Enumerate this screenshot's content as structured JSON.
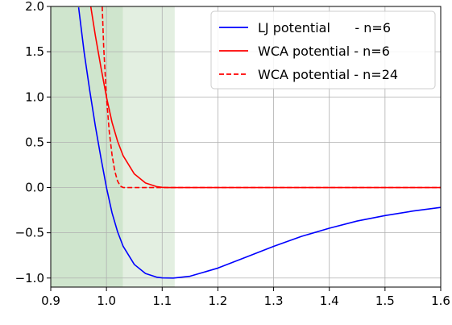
{
  "chart_data": {
    "type": "line",
    "title": "",
    "xlabel": "",
    "ylabel": "",
    "xlim": [
      0.9,
      1.6
    ],
    "ylim": [
      -1.1,
      2.0
    ],
    "grid": true,
    "legend_placement": "top-right",
    "x_ticks": [
      0.9,
      1.0,
      1.1,
      1.2,
      1.3,
      1.4,
      1.5,
      1.6
    ],
    "x_tick_labels": [
      "0.9",
      "1.0",
      "1.1",
      "1.2",
      "1.3",
      "1.4",
      "1.5",
      "1.6"
    ],
    "y_ticks": [
      -1.0,
      -0.5,
      0.0,
      0.5,
      1.0,
      1.5,
      2.0
    ],
    "y_tick_labels": [
      "−1.0",
      "−0.5",
      "0.0",
      "0.5",
      "1.0",
      "1.5",
      "2.0"
    ],
    "shaded_regions": [
      {
        "x0": 0.9,
        "x1": 1.1225,
        "color": "#e3efe1"
      },
      {
        "x0": 0.9,
        "x1": 1.0293,
        "color": "#cfe5cd"
      }
    ],
    "series": [
      {
        "name": "LJ potential      - n=6",
        "color": "#0000ff",
        "style": "solid",
        "x": [
          0.95,
          0.96,
          0.97,
          0.98,
          0.99,
          1.0,
          1.01,
          1.02,
          1.03,
          1.05,
          1.07,
          1.09,
          1.1,
          1.12,
          1.15,
          1.2,
          1.25,
          1.3,
          1.35,
          1.4,
          1.45,
          1.5,
          1.55,
          1.6
        ],
        "y": [
          1.99,
          1.49,
          1.07,
          0.68,
          0.33,
          0.0,
          -0.28,
          -0.49,
          -0.65,
          -0.85,
          -0.95,
          -0.99,
          -0.998,
          -1.0,
          -0.98,
          -0.89,
          -0.77,
          -0.65,
          -0.54,
          -0.45,
          -0.37,
          -0.31,
          -0.26,
          -0.22
        ]
      },
      {
        "name": "WCA potential - n=6",
        "color": "#ff0000",
        "style": "solid",
        "x": [
          0.96,
          0.97,
          0.98,
          0.99,
          1.0,
          1.01,
          1.02,
          1.03,
          1.05,
          1.07,
          1.09,
          1.1,
          1.11,
          1.1225,
          1.2,
          1.3,
          1.4,
          1.5,
          1.6
        ],
        "y": [
          2.49,
          2.07,
          1.68,
          1.33,
          1.0,
          0.72,
          0.51,
          0.35,
          0.15,
          0.05,
          0.01,
          0.002,
          0.0,
          0.0,
          0.0,
          0.0,
          0.0,
          0.0,
          0.0
        ]
      },
      {
        "name": "WCA potential - n=24",
        "color": "#ff0000",
        "style": "dashed",
        "x": [
          0.99,
          0.995,
          1.0,
          1.005,
          1.01,
          1.015,
          1.02,
          1.025,
          1.03,
          1.06,
          1.1,
          1.2,
          1.3,
          1.4,
          1.5,
          1.6
        ],
        "y": [
          2.4,
          1.55,
          1.0,
          0.62,
          0.36,
          0.18,
          0.07,
          0.015,
          0.0,
          0.0,
          0.0,
          0.0,
          0.0,
          0.0,
          0.0,
          0.0
        ]
      }
    ]
  }
}
